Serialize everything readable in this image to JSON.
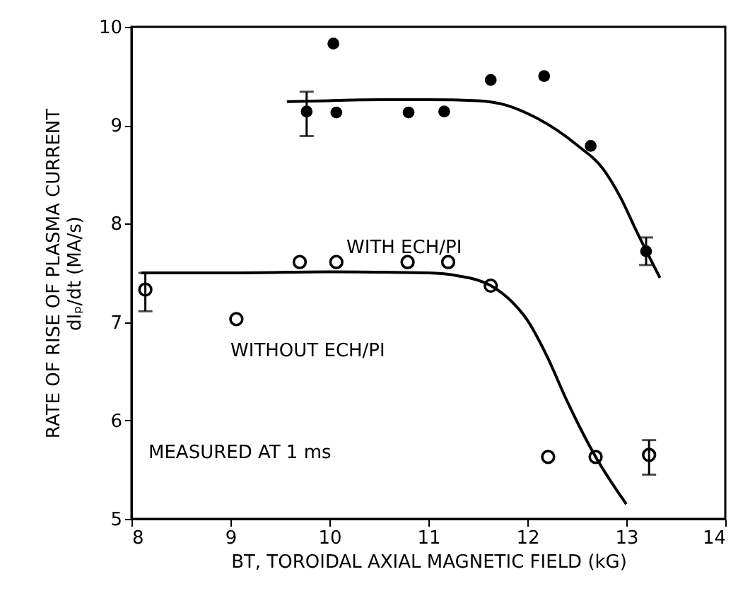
{
  "chart_data": {
    "type": "scatter",
    "xlabel": "BT, TOROIDAL AXIAL MAGNETIC FIELD (kG)",
    "ylabel": "RATE OF RISE OF PLASMA CURRENT\ndIₚ/dt (MA/s)",
    "xlim": [
      8,
      14
    ],
    "xticks": [
      8,
      9,
      10,
      11,
      12,
      13,
      14
    ],
    "ylim": [
      5,
      10
    ],
    "yticks": [
      5,
      6,
      7,
      8,
      9,
      10
    ],
    "grid": false,
    "series": [
      {
        "color": "#000000",
        "marker": "circle",
        "x": [
          9.77,
          10.04,
          10.07,
          10.8,
          11.16,
          11.63,
          12.17,
          12.64,
          13.2
        ],
        "values": [
          9.14,
          9.83,
          9.13,
          9.13,
          9.14,
          9.46,
          9.5,
          8.79,
          7.72
        ],
        "errors": [
          [
            8.89,
            9.34
          ],
          null,
          null,
          null,
          null,
          null,
          null,
          null,
          [
            7.58,
            7.86
          ]
        ]
      },
      {
        "color": "#000000",
        "marker": "circle",
        "x": [
          8.14,
          9.06,
          9.7,
          10.07,
          10.79,
          11.2,
          11.63,
          12.21,
          12.69,
          13.23
        ],
        "values": [
          7.33,
          7.03,
          7.61,
          7.61,
          7.61,
          7.61,
          7.37,
          5.63,
          5.63,
          5.65
        ],
        "errors": [
          [
            7.11,
            7.5
          ],
          null,
          null,
          null,
          null,
          null,
          null,
          null,
          null,
          [
            5.45,
            5.8
          ]
        ]
      },
      {
        "type": "line",
        "marker": "none",
        "line_style": "solid",
        "color": "#000000",
        "x": [
          9.57,
          10.0,
          10.5,
          11.0,
          11.5,
          11.8,
          12.0,
          12.3,
          12.5,
          12.77,
          12.95,
          13.1,
          13.34
        ],
        "values": [
          9.24,
          9.25,
          9.26,
          9.26,
          9.25,
          9.2,
          9.12,
          8.95,
          8.8,
          8.55,
          8.25,
          7.93,
          7.45
        ]
      },
      {
        "type": "line",
        "marker": "none",
        "line_style": "solid",
        "color": "#000000",
        "x": [
          8.1,
          9.0,
          10.0,
          11.0,
          11.3,
          11.63,
          11.85,
          12.0,
          12.2,
          12.4,
          12.69,
          13.0
        ],
        "values": [
          7.5,
          7.5,
          7.51,
          7.5,
          7.47,
          7.37,
          7.2,
          7.02,
          6.65,
          6.2,
          5.63,
          5.15
        ]
      }
    ],
    "annotations": [
      "WITH ECH/PI",
      "WITHOUT ECH/PI",
      "MEASURED AT 1 ms"
    ]
  }
}
